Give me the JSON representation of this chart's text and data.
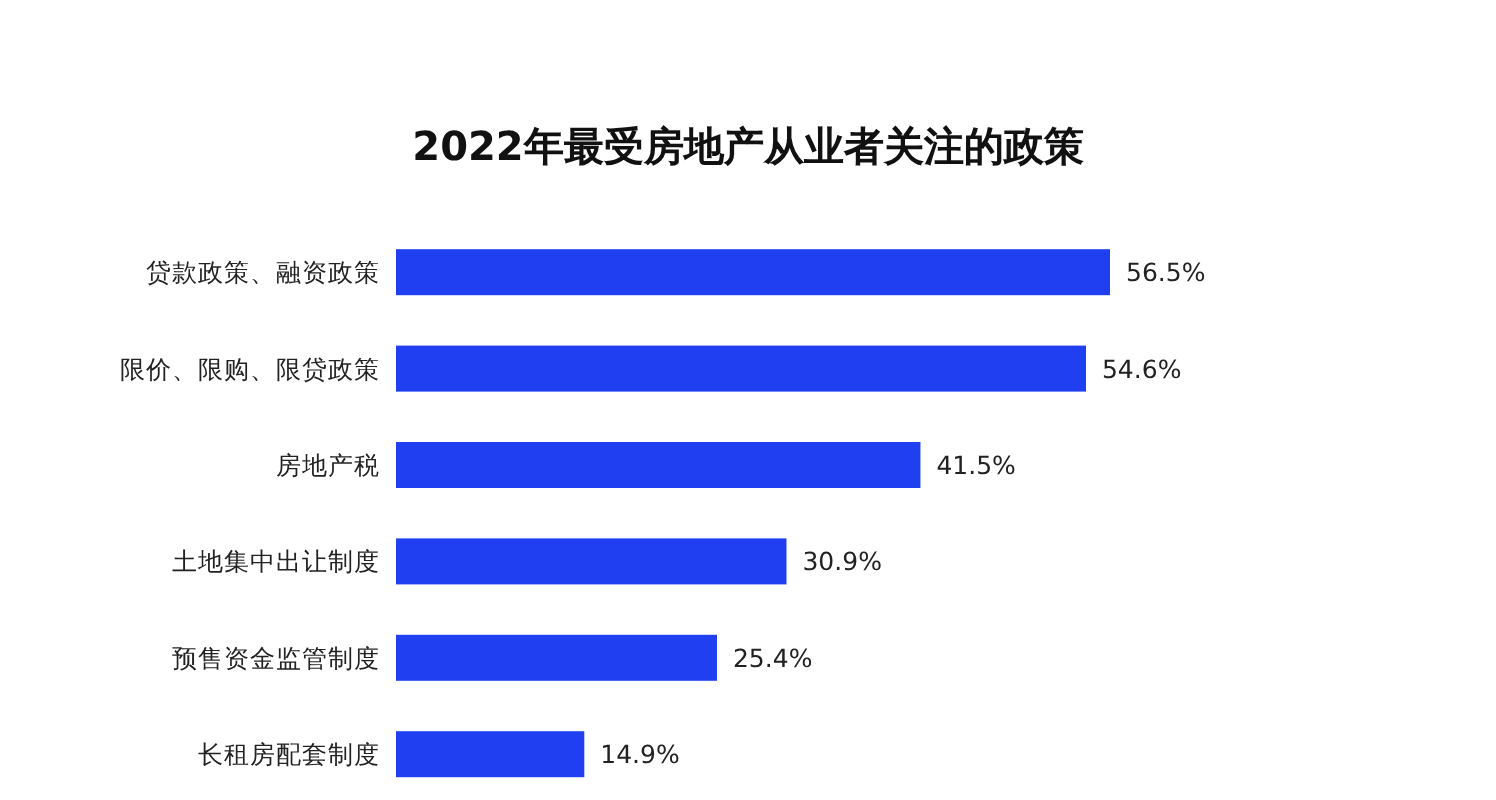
{
  "chart_data": {
    "type": "bar",
    "orientation": "horizontal",
    "title": "2022年最受房地产从业者关注的政策",
    "categories": [
      "贷款政策、融资政策",
      "限价、限购、限贷政策",
      "房地产税",
      "土地集中出让制度",
      "预售资金监管制度",
      "长租房配套制度"
    ],
    "values": [
      56.5,
      54.6,
      41.5,
      30.9,
      25.4,
      14.9
    ],
    "value_labels": [
      "56.5%",
      "54.6%",
      "41.5%",
      "30.9%",
      "25.4%",
      "14.9%"
    ],
    "color": "#1f3ff0"
  }
}
